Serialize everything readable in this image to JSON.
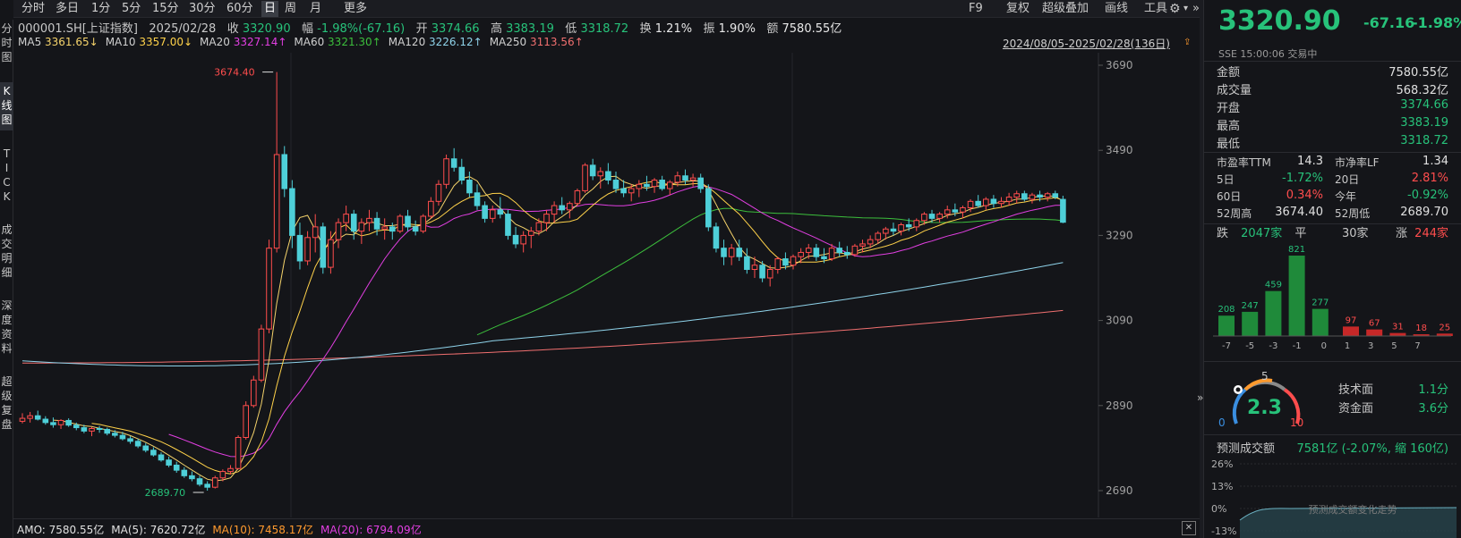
{
  "left_tabs": [
    "分时图",
    "K线图",
    "TICK",
    "成交明细",
    "深度资料",
    "超级复盘"
  ],
  "toolbar": {
    "items": [
      "分时",
      "多日",
      "1分",
      "5分",
      "15分",
      "30分",
      "60分",
      "日",
      "周",
      "月",
      "更多"
    ],
    "active": "日",
    "right_items": [
      "F9",
      "复权",
      "超级叠加",
      "画线",
      "工具"
    ]
  },
  "info_line": {
    "code": "000001.SH[上证指数]",
    "date": "2025/02/28",
    "close_label": "收",
    "close": "3320.90",
    "change_label": "幅",
    "change": "-1.98%(-67.16)",
    "open_label": "开",
    "open": "3374.66",
    "high_label": "高",
    "high": "3383.19",
    "low_label": "低",
    "low": "3318.72",
    "turnover_label": "换",
    "turnover": "1.21%",
    "amplitude_label": "振",
    "amplitude": "1.90%",
    "amount_label": "额",
    "amount": "7580.55亿"
  },
  "ma_line": {
    "items": [
      {
        "label": "MA5",
        "value": "3361.65↓",
        "color": "#f5d36b"
      },
      {
        "label": "MA10",
        "value": "3357.00↓",
        "color": "#ffd24a"
      },
      {
        "label": "MA20",
        "value": "3327.14↑",
        "color": "#e23fe2"
      },
      {
        "label": "MA60",
        "value": "3321.30↑",
        "color": "#3cbf3c"
      },
      {
        "label": "MA120",
        "value": "3226.12↑",
        "color": "#8fd3ea"
      },
      {
        "label": "MA250",
        "value": "3113.56↑",
        "color": "#f06f6f"
      }
    ],
    "range": "2024/08/05-2025/02/28(136日)"
  },
  "chart": {
    "price_ticks": [
      "3690",
      "3490",
      "3290",
      "3090",
      "2890",
      "2690"
    ],
    "high_marker": "3674.40",
    "low_marker": "2689.70"
  },
  "chart_data": {
    "type": "candlestick",
    "title": "000001.SH[上证指数] 日K",
    "ylim": [
      2690,
      3690
    ],
    "price_ticks": [
      3690,
      3490,
      3290,
      3090,
      2890,
      2690
    ],
    "ohlc": [
      [
        2853,
        2872,
        2848,
        2860
      ],
      [
        2860,
        2875,
        2850,
        2866
      ],
      [
        2866,
        2878,
        2855,
        2858
      ],
      [
        2858,
        2865,
        2845,
        2850
      ],
      [
        2850,
        2862,
        2838,
        2845
      ],
      [
        2845,
        2858,
        2835,
        2855
      ],
      [
        2855,
        2860,
        2840,
        2844
      ],
      [
        2844,
        2850,
        2832,
        2838
      ],
      [
        2838,
        2845,
        2825,
        2830
      ],
      [
        2830,
        2840,
        2818,
        2836
      ],
      [
        2836,
        2842,
        2826,
        2834
      ],
      [
        2834,
        2838,
        2820,
        2825
      ],
      [
        2825,
        2832,
        2815,
        2820
      ],
      [
        2820,
        2828,
        2808,
        2812
      ],
      [
        2812,
        2818,
        2800,
        2806
      ],
      [
        2806,
        2812,
        2790,
        2795
      ],
      [
        2795,
        2802,
        2780,
        2785
      ],
      [
        2785,
        2792,
        2770,
        2774
      ],
      [
        2774,
        2780,
        2758,
        2762
      ],
      [
        2762,
        2770,
        2745,
        2750
      ],
      [
        2750,
        2758,
        2732,
        2738
      ],
      [
        2738,
        2745,
        2720,
        2725
      ],
      [
        2725,
        2735,
        2712,
        2718
      ],
      [
        2718,
        2725,
        2700,
        2705
      ],
      [
        2705,
        2712,
        2690,
        2698
      ],
      [
        2698,
        2725,
        2695,
        2720
      ],
      [
        2720,
        2740,
        2712,
        2735
      ],
      [
        2735,
        2750,
        2728,
        2742
      ],
      [
        2742,
        2820,
        2740,
        2815
      ],
      [
        2815,
        2900,
        2810,
        2890
      ],
      [
        2890,
        2960,
        2885,
        2950
      ],
      [
        2950,
        3080,
        2945,
        3070
      ],
      [
        3070,
        3280,
        3060,
        3260
      ],
      [
        3260,
        3674,
        3250,
        3480
      ],
      [
        3480,
        3500,
        3380,
        3400
      ],
      [
        3400,
        3420,
        3260,
        3290
      ],
      [
        3290,
        3320,
        3210,
        3230
      ],
      [
        3230,
        3300,
        3220,
        3285
      ],
      [
        3285,
        3340,
        3250,
        3310
      ],
      [
        3310,
        3320,
        3200,
        3215
      ],
      [
        3215,
        3300,
        3200,
        3280
      ],
      [
        3280,
        3330,
        3260,
        3320
      ],
      [
        3320,
        3360,
        3300,
        3340
      ],
      [
        3340,
        3350,
        3280,
        3300
      ],
      [
        3300,
        3330,
        3270,
        3320
      ],
      [
        3320,
        3350,
        3300,
        3330
      ],
      [
        3330,
        3345,
        3290,
        3305
      ],
      [
        3305,
        3330,
        3280,
        3310
      ],
      [
        3310,
        3320,
        3280,
        3300
      ],
      [
        3300,
        3340,
        3295,
        3335
      ],
      [
        3335,
        3350,
        3300,
        3310
      ],
      [
        3310,
        3325,
        3290,
        3300
      ],
      [
        3300,
        3340,
        3295,
        3335
      ],
      [
        3335,
        3380,
        3330,
        3370
      ],
      [
        3370,
        3420,
        3360,
        3410
      ],
      [
        3410,
        3480,
        3400,
        3470
      ],
      [
        3470,
        3495,
        3440,
        3450
      ],
      [
        3450,
        3470,
        3410,
        3420
      ],
      [
        3420,
        3440,
        3380,
        3390
      ],
      [
        3390,
        3410,
        3350,
        3360
      ],
      [
        3360,
        3370,
        3320,
        3330
      ],
      [
        3330,
        3360,
        3320,
        3350
      ],
      [
        3350,
        3380,
        3330,
        3340
      ],
      [
        3340,
        3350,
        3280,
        3290
      ],
      [
        3290,
        3310,
        3260,
        3270
      ],
      [
        3270,
        3300,
        3250,
        3290
      ],
      [
        3290,
        3310,
        3260,
        3300
      ],
      [
        3300,
        3330,
        3290,
        3320
      ],
      [
        3320,
        3350,
        3300,
        3340
      ],
      [
        3340,
        3370,
        3320,
        3360
      ],
      [
        3360,
        3380,
        3340,
        3350
      ],
      [
        3350,
        3370,
        3330,
        3365
      ],
      [
        3365,
        3400,
        3360,
        3395
      ],
      [
        3395,
        3460,
        3390,
        3455
      ],
      [
        3455,
        3470,
        3420,
        3430
      ],
      [
        3430,
        3450,
        3400,
        3440
      ],
      [
        3440,
        3460,
        3410,
        3420
      ],
      [
        3420,
        3440,
        3390,
        3400
      ],
      [
        3400,
        3420,
        3380,
        3390
      ],
      [
        3390,
        3410,
        3370,
        3400
      ],
      [
        3400,
        3420,
        3380,
        3410
      ],
      [
        3410,
        3430,
        3395,
        3405
      ],
      [
        3405,
        3425,
        3390,
        3420
      ],
      [
        3420,
        3430,
        3395,
        3400
      ],
      [
        3400,
        3420,
        3385,
        3415
      ],
      [
        3415,
        3440,
        3405,
        3430
      ],
      [
        3430,
        3445,
        3410,
        3420
      ],
      [
        3420,
        3435,
        3405,
        3425
      ],
      [
        3425,
        3435,
        3390,
        3400
      ],
      [
        3400,
        3410,
        3300,
        3310
      ],
      [
        3310,
        3320,
        3250,
        3260
      ],
      [
        3260,
        3280,
        3220,
        3240
      ],
      [
        3240,
        3270,
        3220,
        3260
      ],
      [
        3260,
        3280,
        3230,
        3240
      ],
      [
        3240,
        3260,
        3200,
        3210
      ],
      [
        3210,
        3240,
        3190,
        3220
      ],
      [
        3220,
        3230,
        3180,
        3190
      ],
      [
        3190,
        3220,
        3170,
        3210
      ],
      [
        3210,
        3240,
        3200,
        3235
      ],
      [
        3235,
        3250,
        3210,
        3220
      ],
      [
        3220,
        3245,
        3210,
        3240
      ],
      [
        3240,
        3260,
        3225,
        3250
      ],
      [
        3250,
        3270,
        3235,
        3260
      ],
      [
        3260,
        3270,
        3230,
        3240
      ],
      [
        3240,
        3260,
        3225,
        3235
      ],
      [
        3235,
        3270,
        3230,
        3260
      ],
      [
        3260,
        3275,
        3240,
        3250
      ],
      [
        3250,
        3265,
        3235,
        3245
      ],
      [
        3245,
        3270,
        3240,
        3265
      ],
      [
        3265,
        3280,
        3250,
        3270
      ],
      [
        3270,
        3290,
        3260,
        3280
      ],
      [
        3280,
        3300,
        3270,
        3295
      ],
      [
        3295,
        3310,
        3280,
        3305
      ],
      [
        3305,
        3320,
        3290,
        3300
      ],
      [
        3300,
        3320,
        3290,
        3315
      ],
      [
        3315,
        3330,
        3300,
        3310
      ],
      [
        3310,
        3330,
        3300,
        3325
      ],
      [
        3325,
        3345,
        3315,
        3340
      ],
      [
        3340,
        3350,
        3320,
        3330
      ],
      [
        3330,
        3345,
        3320,
        3340
      ],
      [
        3340,
        3360,
        3330,
        3350
      ],
      [
        3350,
        3365,
        3335,
        3345
      ],
      [
        3345,
        3360,
        3330,
        3355
      ],
      [
        3355,
        3375,
        3345,
        3370
      ],
      [
        3370,
        3385,
        3355,
        3360
      ],
      [
        3360,
        3380,
        3350,
        3375
      ],
      [
        3375,
        3385,
        3355,
        3365
      ],
      [
        3365,
        3380,
        3355,
        3370
      ],
      [
        3370,
        3390,
        3360,
        3380
      ],
      [
        3380,
        3395,
        3365,
        3388
      ],
      [
        3388,
        3395,
        3370,
        3375
      ],
      [
        3375,
        3390,
        3365,
        3385
      ],
      [
        3385,
        3395,
        3370,
        3380
      ],
      [
        3380,
        3392,
        3370,
        3388
      ],
      [
        3388,
        3395,
        3375,
        3380
      ],
      [
        3374.66,
        3383.19,
        3318.72,
        3320.9
      ]
    ],
    "ma120_end": 3226.12,
    "ma250_end": 3113.56
  },
  "bottom_bar": {
    "items": [
      {
        "label": "AMO: 7580.55亿",
        "color": "#e0e0e0"
      },
      {
        "label": "MA(5): 7620.72亿",
        "color": "#e0e0e0"
      },
      {
        "label": "MA(10): 7458.17亿",
        "color": "#ff9a2e"
      },
      {
        "label": "MA(20): 6794.09亿",
        "color": "#e23fe2"
      }
    ]
  },
  "right_panel": {
    "price": "3320.90",
    "change": "-67.16",
    "change_pct": "-1.98%",
    "market": "SSE",
    "time": "15:00:06",
    "status": "交易中",
    "stats": [
      {
        "k": "金额",
        "v": "7580.55亿",
        "c": "#e0e0e0"
      },
      {
        "k": "成交量",
        "v": "568.32亿",
        "c": "#e0e0e0"
      },
      {
        "k": "开盘",
        "v": "3374.66",
        "c": "#27c27a"
      },
      {
        "k": "最高",
        "v": "3383.19",
        "c": "#27c27a"
      },
      {
        "k": "最低",
        "v": "3318.72",
        "c": "#27c27a"
      }
    ],
    "grid": [
      {
        "k1": "市盈率TTM",
        "v1": "14.3",
        "c1": "#e0e0e0",
        "k2": "市净率LF",
        "v2": "1.34",
        "c2": "#e0e0e0"
      },
      {
        "k1": "5日",
        "v1": "-1.72%",
        "c1": "#27c27a",
        "k2": "20日",
        "v2": "2.81%",
        "c2": "#ff4d4d"
      },
      {
        "k1": "60日",
        "v1": "0.34%",
        "c1": "#ff4d4d",
        "k2": "今年",
        "v2": "-0.92%",
        "c2": "#27c27a"
      },
      {
        "k1": "52周高",
        "v1": "3674.40",
        "c1": "#e0e0e0",
        "k2": "52周低",
        "v2": "2689.70",
        "c2": "#e0e0e0"
      }
    ],
    "breadth": {
      "fall_label": "跌",
      "fall": "2047家",
      "flat_label": "平",
      "flat": "30家",
      "rise_label": "涨",
      "rise": "244家",
      "bars": [
        208,
        247,
        459,
        821,
        277,
        97,
        67,
        31,
        18,
        25
      ],
      "axis": [
        "-7",
        "-5",
        "-3",
        "-1",
        "0",
        "1",
        "3",
        "5",
        "7"
      ]
    },
    "gauge": {
      "score": "2.3",
      "min": "0",
      "mid": "5",
      "max": "10",
      "tech_label": "技术面",
      "tech_value": "1.1分",
      "fund_label": "资金面",
      "fund_value": "3.6分"
    },
    "forecast": {
      "label": "预测成交额",
      "value": "7581亿 (-2.07%, 缩 160亿)",
      "ticks": [
        "26%",
        "13%",
        "0%",
        "-13%"
      ],
      "caption": "预测成交额变化走势"
    }
  }
}
